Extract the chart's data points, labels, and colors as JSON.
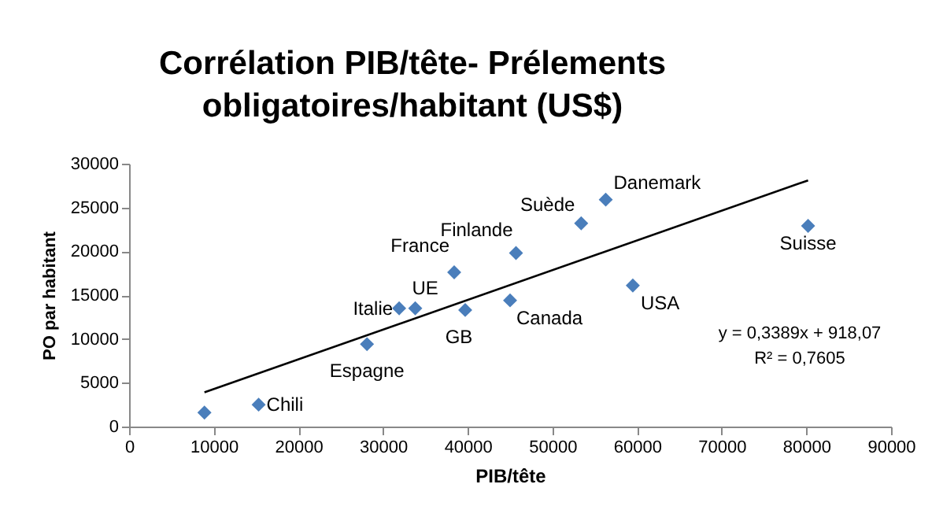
{
  "chart_data": {
    "type": "scatter",
    "title": "Corrélation PIB/tête- Prélements\nobligatoires/habitant (US$)",
    "xlabel": "PIB/tête",
    "ylabel": "PO par habitant",
    "xlim": [
      0,
      90000
    ],
    "xticks": [
      0,
      10000,
      20000,
      30000,
      40000,
      50000,
      60000,
      70000,
      80000,
      90000
    ],
    "ylim": [
      0,
      30000
    ],
    "yticks": [
      0,
      5000,
      10000,
      15000,
      20000,
      25000,
      30000
    ],
    "grid": false,
    "marker": "diamond",
    "series": [
      {
        "color": "#4a7ebb",
        "x": [
          8900,
          15300,
          28100,
          31900,
          33800,
          38400,
          39700,
          45000,
          45700,
          53400,
          56300,
          59500,
          80200
        ],
        "values": [
          1600,
          2500,
          9400,
          13500,
          13500,
          17600,
          13300,
          14400,
          19800,
          23200,
          25900,
          16100,
          22900
        ]
      },
      {
        "type": "line",
        "marker": "none",
        "color": "#000000",
        "x": [
          8900,
          80200
        ],
        "values": [
          3900,
          28100
        ]
      }
    ],
    "annotations": [
      {
        "text": "Chili",
        "x": 15300,
        "y": 2500
      },
      {
        "text": "Espagne",
        "x": 28100,
        "y": 9400
      },
      {
        "text": "Italie",
        "x": 31900,
        "y": 13500
      },
      {
        "text": "UE",
        "x": 33800,
        "y": 13500
      },
      {
        "text": "France",
        "x": 38400,
        "y": 17600
      },
      {
        "text": "GB",
        "x": 39700,
        "y": 13300
      },
      {
        "text": "Canada",
        "x": 45000,
        "y": 14400
      },
      {
        "text": "Finlande",
        "x": 45700,
        "y": 19800
      },
      {
        "text": "Suède",
        "x": 53400,
        "y": 23200
      },
      {
        "text": "Danemark",
        "x": 56300,
        "y": 25900
      },
      {
        "text": "USA",
        "x": 59500,
        "y": 16100
      },
      {
        "text": "Suisse",
        "x": 80200,
        "y": 22900
      },
      "y = 0,3389x + 918,07\nR² = 0,7605"
    ]
  }
}
